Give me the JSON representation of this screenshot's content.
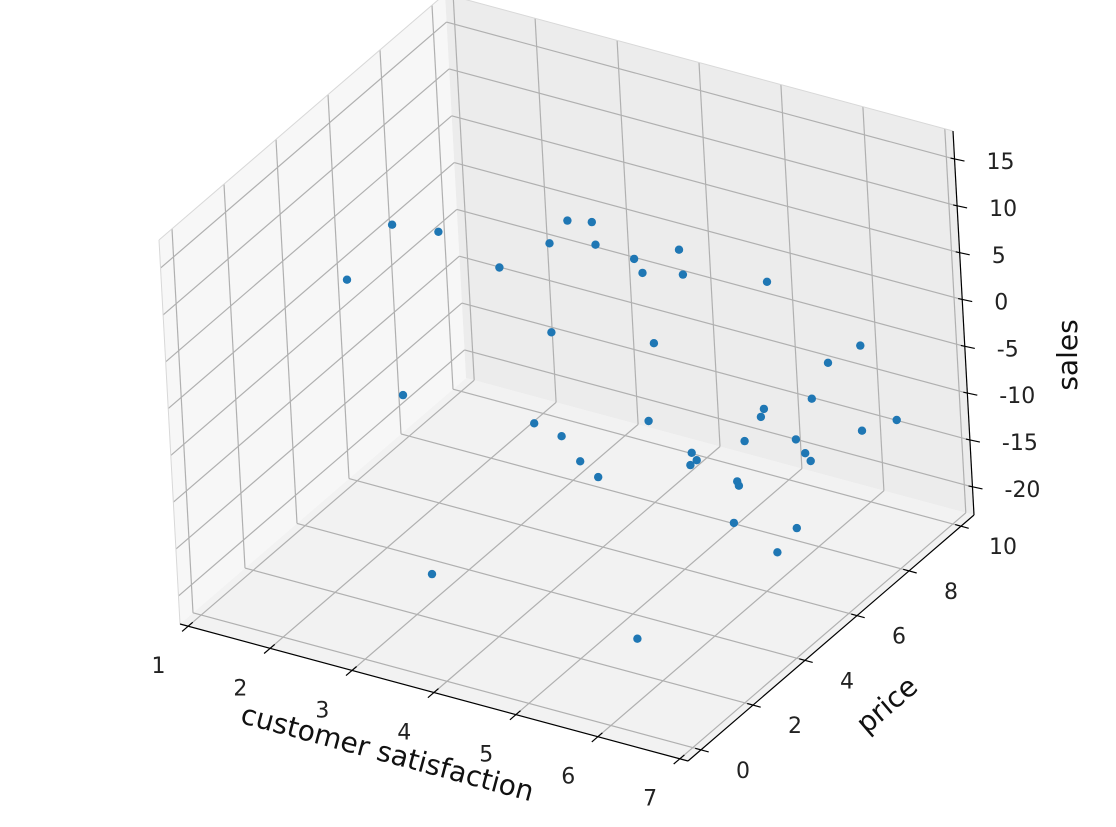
{
  "chart_data": {
    "type": "scatter",
    "title": "",
    "xlabel": "customer satisfaction",
    "ylabel": "price",
    "zlabel": "sales",
    "x_ticks": [
      1,
      2,
      3,
      4,
      5,
      6,
      7
    ],
    "y_ticks": [
      0,
      2,
      4,
      6,
      8,
      10
    ],
    "z_ticks": [
      15,
      10,
      5,
      0,
      -5,
      -10,
      -15,
      -20
    ],
    "xlim": [
      0.9,
      7.1
    ],
    "ylim": [
      -0.5,
      10.5
    ],
    "zlim": [
      -23.0,
      18.0
    ],
    "grid": true,
    "marker_color": "#1f77b4",
    "points": [
      {
        "x": 1.01,
        "y": 6.0,
        "z": -1.5
      },
      {
        "x": 1.1,
        "y": 7.5,
        "z": 1.0
      },
      {
        "x": 1.5,
        "y": 8.0,
        "z": 0.0
      },
      {
        "x": 2.6,
        "y": 9.5,
        "z": 0.2
      },
      {
        "x": 2.4,
        "y": 7.5,
        "z": -0.5
      },
      {
        "x": 2.3,
        "y": 4.0,
        "z": -6.0
      },
      {
        "x": 2.7,
        "y": 8.5,
        "z": 0.4
      },
      {
        "x": 2.8,
        "y": 9.8,
        "z": -0.2
      },
      {
        "x": 3.0,
        "y": 7.5,
        "z": -6.0
      },
      {
        "x": 3.4,
        "y": 9.5,
        "z": -2.0
      },
      {
        "x": 3.1,
        "y": 9.0,
        "z": 0.0
      },
      {
        "x": 3.4,
        "y": 5.5,
        "z": -10.0
      },
      {
        "x": 3.55,
        "y": 1.0,
        "z": -15.0
      },
      {
        "x": 4.0,
        "y": 8.0,
        "z": 1.5
      },
      {
        "x": 4.3,
        "y": 8.5,
        "z": 3.5
      },
      {
        "x": 4.5,
        "y": 8.0,
        "z": 2.5
      },
      {
        "x": 4.6,
        "y": 6.5,
        "z": -1.0
      },
      {
        "x": 3.9,
        "y": 5.0,
        "z": -9.0
      },
      {
        "x": 4.45,
        "y": 4.0,
        "z": -8.0
      },
      {
        "x": 4.65,
        "y": 6.0,
        "z": -8.0
      },
      {
        "x": 5.2,
        "y": 9.0,
        "z": 1.0
      },
      {
        "x": 5.0,
        "y": 3.0,
        "z": -6.0
      },
      {
        "x": 5.5,
        "y": 5.0,
        "z": -7.0
      },
      {
        "x": 5.9,
        "y": 9.0,
        "z": -6.0
      },
      {
        "x": 5.75,
        "y": 7.0,
        "z": -6.5
      },
      {
        "x": 6.15,
        "y": 3.0,
        "z": -2.0
      },
      {
        "x": 6.35,
        "y": 7.0,
        "z": -4.0
      },
      {
        "x": 6.65,
        "y": 8.0,
        "z": 0.0
      },
      {
        "x": 6.5,
        "y": 4.0,
        "z": -1.0
      },
      {
        "x": 6.55,
        "y": 3.5,
        "z": -4.0
      },
      {
        "x": 6.05,
        "y": 1.0,
        "z": -16.0
      },
      {
        "x": 6.4,
        "y": 2.5,
        "z": 0.3
      },
      {
        "x": 6.55,
        "y": 4.5,
        "z": 0.5
      },
      {
        "x": 6.8,
        "y": 5.0,
        "z": -2.5
      },
      {
        "x": 6.4,
        "y": 6.5,
        "z": -8.5
      },
      {
        "x": 6.4,
        "y": 4.0,
        "z": -6.0
      },
      {
        "x": 7.05,
        "y": 8.0,
        "z": -7.0
      },
      {
        "x": 6.8,
        "y": 5.5,
        "z": -6.0
      },
      {
        "x": 6.65,
        "y": 3.0,
        "z": -7.0
      },
      {
        "x": 6.92,
        "y": 4.5,
        "z": -10.5
      },
      {
        "x": 7.0,
        "y": 3.5,
        "z": -10.5
      },
      {
        "x": 6.95,
        "y": 7.0,
        "z": -6.0
      }
    ]
  }
}
